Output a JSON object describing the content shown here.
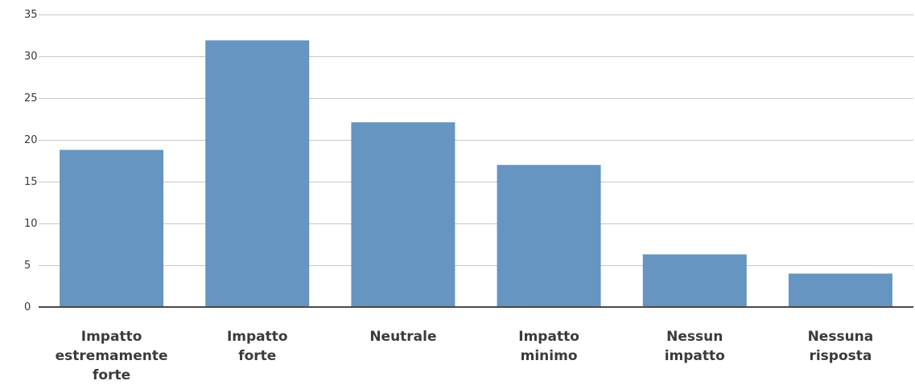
{
  "colors": {
    "bar": "#6595c0",
    "grid": "#c8c8c8",
    "axis": "#4a4a4a",
    "text": "#3b3b3b"
  },
  "chart_data": {
    "type": "bar",
    "categories": [
      [
        "Impatto",
        "estremamente",
        "forte"
      ],
      [
        "Impatto",
        "forte"
      ],
      [
        "Neutrale"
      ],
      [
        "Impatto",
        "minimo"
      ],
      [
        "Nessun",
        "impatto"
      ],
      [
        "Nessuna",
        "risposta"
      ]
    ],
    "values": [
      18.8,
      31.9,
      22.1,
      17.0,
      6.3,
      4.0
    ],
    "ylim": [
      0,
      35
    ],
    "yticks": [
      "0",
      "5",
      "10",
      "15",
      "20",
      "25",
      "30",
      "35"
    ],
    "grid": true,
    "legend": "none",
    "title": "",
    "xlabel": "",
    "ylabel": ""
  }
}
